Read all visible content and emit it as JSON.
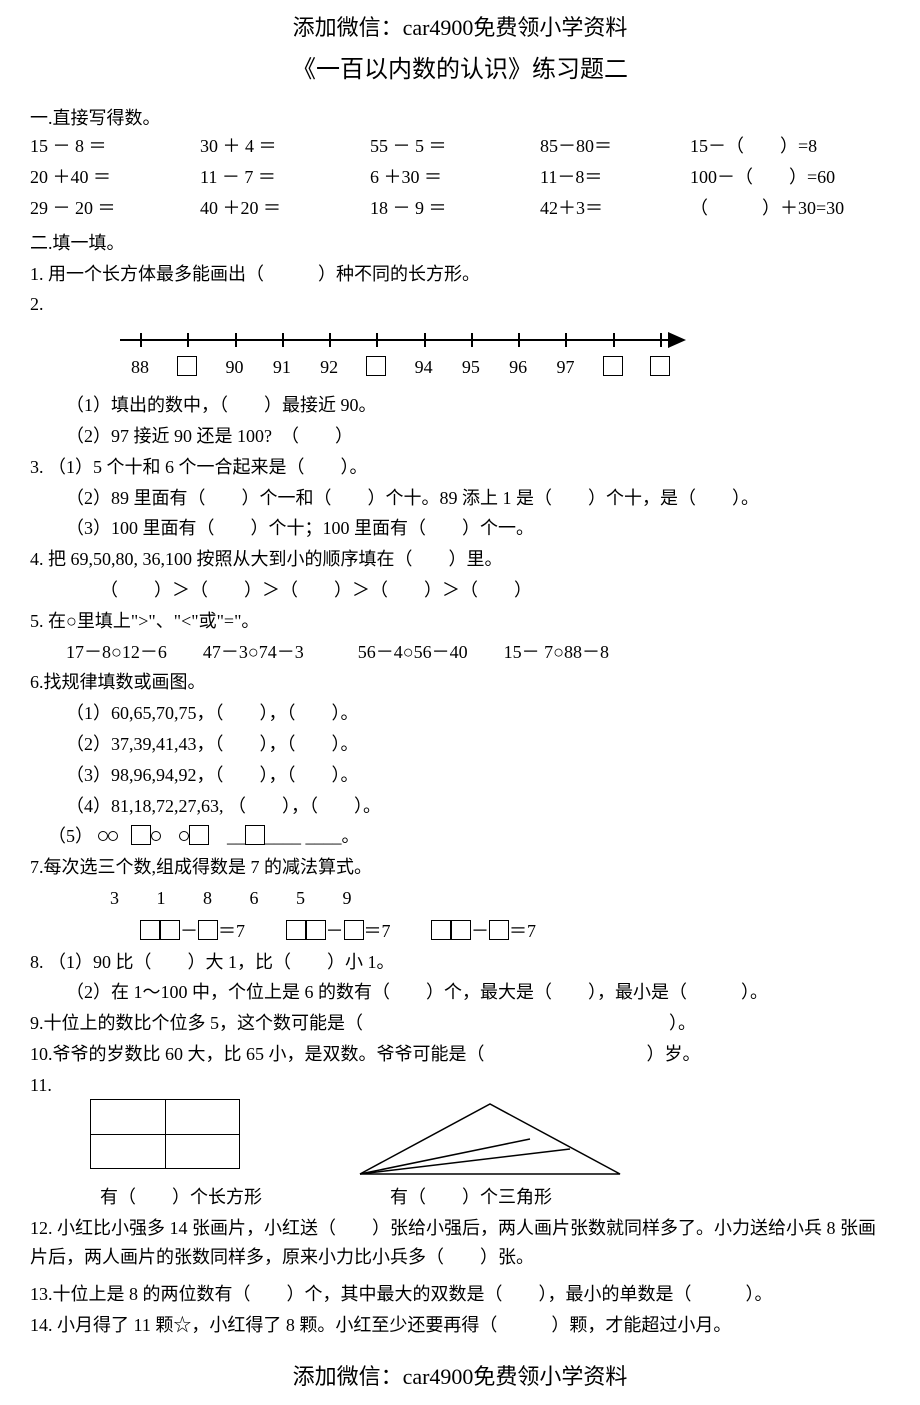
{
  "banner": "添加微信：car4900免费领小学资料",
  "title": "《一百以内数的认识》练习题二",
  "s1": {
    "head": "一.直接写得数。",
    "rows": [
      [
        "15 － 8 ＝",
        "30 ＋ 4 ＝",
        "55 － 5 ＝",
        "85－80＝",
        "15－（　　）=8"
      ],
      [
        "20 ＋40 ＝",
        "11 － 7 ＝",
        "6  ＋30 ＝",
        "11－8＝",
        "100－（　　）=60"
      ],
      [
        "29 － 20 ＝",
        "40 ＋20 ＝",
        "18 － 9 ＝",
        "42＋3＝",
        "（　　　）＋30=30"
      ]
    ]
  },
  "s2": {
    "head": "二.填一填。",
    "q1": "1. 用一个长方体最多能画出（　　　）种不同的长方形。",
    "q2_label": "2.",
    "numline": {
      "ticks_n": 12,
      "labels": [
        "88",
        "",
        "90",
        "91",
        "92",
        "",
        "94",
        "95",
        "96",
        "97",
        "",
        ""
      ],
      "box_slots": [
        1,
        5,
        10,
        11
      ]
    },
    "q2a": "（1）填出的数中，（　　）最接近 90。",
    "q2b": "（2）97 接近 90 还是 100?　（　　）",
    "q3a": "3. （1）5 个十和 6 个一合起来是（　　）。",
    "q3b": "（2）89 里面有（　　）个一和（　　）个十。89 添上 1 是（　　）个十，是（　　）。",
    "q3c": "（3）100 里面有（　　）个十；100 里面有（　　）个一。",
    "q4": "4. 把 69,50,80, 36,100 按照从大到小的顺序填在（　　）里。",
    "q4line": "（　　）＞（　　）＞（　　）＞（　　）＞（　　）",
    "q5": "5. 在○里填上\">\"、\"<\"或\"=\"。",
    "q5line": "17－8○12－6　　47－3○74－3　　　56－4○56－40　　15－ 7○88－8",
    "q6": "6.找规律填数或画图。",
    "q6a": "（1）60,65,70,75，（　　），（　　）。",
    "q6b": "（2）37,39,41,43，（　　），（　　）。",
    "q6c": "（3）98,96,94,92，（　　），（　　）。",
    "q6d": "（4）81,18,72,27,63, （　　），（　　）。",
    "q6e_prefix": "（5）",
    "q7": "7.每次选三个数,组成得数是 7 的减法算式。",
    "q7nums": "3　　1　　8　　6　　5　　9",
    "q7eq": "＝7",
    "q8a": "8. （1）90 比（　　）大 1，比（　　）小 1。",
    "q8b": "（2）在 1～100 中，个位上是 6 的数有（　　）个，最大是（　　），最小是（　　　）。",
    "q9": "9.十位上的数比个位多 5，这个数可能是（　　　　　　　　　　　　　　　　　）。",
    "q10": "10.爷爷的岁数比 60 大，比 65 小，是双数。爷爷可能是（　　　　　　　　　）岁。",
    "q11": "11.",
    "q11a": "有（　　）个长方形",
    "q11b": "有（　　）个三角形",
    "q12": "12. 小红比小强多 14 张画片，小红送（　　）张给小强后，两人画片张数就同样多了。小力送给小兵 8 张画片后，两人画片的张数同样多，原来小力比小兵多（　　）张。",
    "q13": "13.十位上是 8 的两位数有（　　）个，其中最大的双数是（　　），最小的单数是（　　　）。",
    "q14": "14. 小月得了 11 颗☆，小红得了 8 颗。小红至少还要再得（　　　）颗，才能超过小月。"
  },
  "colors": {
    "text": "#000000",
    "bg": "#ffffff"
  }
}
